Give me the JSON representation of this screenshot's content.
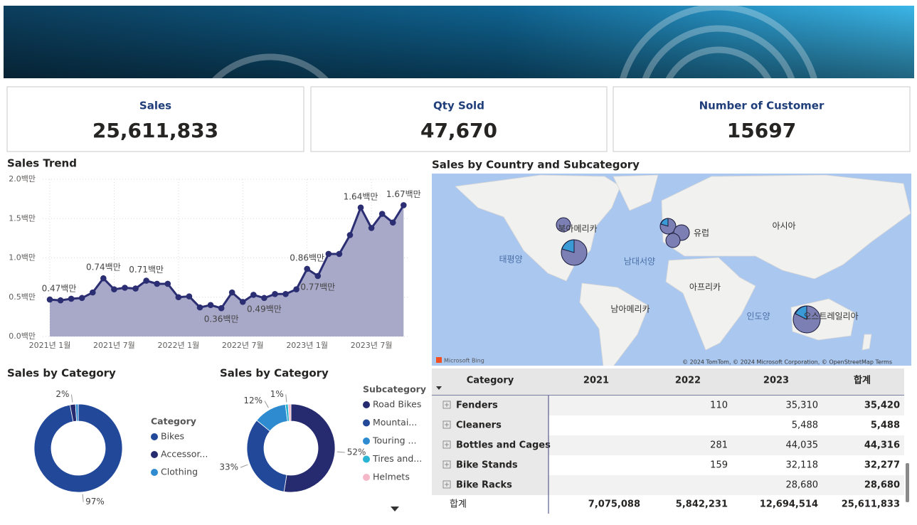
{
  "kpis": [
    {
      "label": "Sales",
      "value": "25,611,833"
    },
    {
      "label": "Qty Sold",
      "value": "47,670"
    },
    {
      "label": "Number of Customer",
      "value": "15697"
    }
  ],
  "chart_data": [
    {
      "type": "line",
      "title": "Sales Trend",
      "categories": [
        "2021년 1월",
        null,
        null,
        null,
        null,
        null,
        "2021년 7월",
        null,
        null,
        null,
        null,
        null,
        "2022년 1월",
        null,
        null,
        null,
        null,
        null,
        "2022년 7월",
        null,
        null,
        null,
        null,
        null,
        "2023년 1월",
        null,
        null,
        null,
        null,
        null,
        "2023년 7월",
        null,
        null,
        null
      ],
      "values": [
        0.47,
        0.46,
        0.48,
        0.49,
        0.56,
        0.74,
        0.6,
        0.62,
        0.61,
        0.71,
        0.67,
        0.67,
        0.5,
        0.51,
        0.37,
        0.4,
        0.36,
        0.56,
        0.44,
        0.53,
        0.49,
        0.54,
        0.54,
        0.6,
        0.86,
        0.77,
        1.05,
        1.05,
        1.29,
        1.64,
        1.38,
        1.56,
        1.45,
        1.67
      ],
      "value_labels": [
        "0.47백만",
        null,
        null,
        null,
        null,
        "0.74백만",
        null,
        null,
        null,
        "0.71백만",
        null,
        null,
        null,
        null,
        null,
        null,
        "0.36백만",
        null,
        null,
        null,
        "0.49백만",
        null,
        null,
        null,
        "0.86백만",
        "0.77백만",
        null,
        null,
        null,
        "1.64백만",
        null,
        null,
        null,
        "1.67백만"
      ],
      "color": "#2b2e72",
      "area_color": "#a8a9c9",
      "ylim": [
        0,
        2
      ],
      "yticks": [
        {
          "value": 0,
          "label": "0.0백만"
        },
        {
          "value": 0.5,
          "label": "0.5백만"
        },
        {
          "value": 1,
          "label": "1.0백만"
        },
        {
          "value": 1.5,
          "label": "1.5백만"
        },
        {
          "value": 2,
          "label": "2.0백만"
        }
      ],
      "grid": true
    },
    {
      "type": "pie",
      "title": "Sales by Category",
      "legend_title": "Category",
      "categories": [
        "Bikes",
        "Accessor...",
        "Clothing"
      ],
      "values": [
        97,
        2,
        1
      ],
      "value_labels": [
        "97%",
        "2%",
        null
      ],
      "colors": [
        "#22489a",
        "#262a6e",
        "#2e8bd0"
      ]
    },
    {
      "type": "pie",
      "title": "Sales by Category",
      "legend_title": "Subcategory",
      "categories": [
        "Road Bikes",
        "Mountai...",
        "Touring ...",
        "Tires and...",
        "Helmets"
      ],
      "values": [
        52,
        33,
        12,
        1,
        1
      ],
      "value_labels": [
        "52%",
        "33%",
        "12%",
        "1%",
        null
      ],
      "colors": [
        "#262a6e",
        "#22489a",
        "#2e8bd0",
        "#28b4d2",
        "#f4b8c8"
      ]
    }
  ],
  "map": {
    "title": "Sales by Country and Subcategory",
    "labels": [
      "북아메리카",
      "유럽",
      "아시아",
      "태평양",
      "남대서양",
      "아프리카",
      "남아메리카",
      "인도양",
      "오스트레일리아"
    ],
    "logo": "Microsoft Bing",
    "attribution": "© 2024 TomTom, © 2024 Microsoft Corporation, © OpenStreetMap  Terms"
  },
  "table": {
    "header": [
      "Category",
      "2021",
      "2022",
      "2023",
      "합계"
    ],
    "rows": [
      [
        "Fenders",
        null,
        "110",
        "35,310",
        "35,420"
      ],
      [
        "Cleaners",
        null,
        null,
        "5,488",
        "5,488"
      ],
      [
        "Bottles and Cages",
        null,
        "281",
        "44,035",
        "44,316"
      ],
      [
        "Bike Stands",
        null,
        "159",
        "32,118",
        "32,277"
      ],
      [
        "Bike Racks",
        null,
        null,
        "28,680",
        "28,680"
      ]
    ],
    "total": [
      "합계",
      "7,075,088",
      "5,842,231",
      "12,694,514",
      "25,611,833"
    ]
  }
}
